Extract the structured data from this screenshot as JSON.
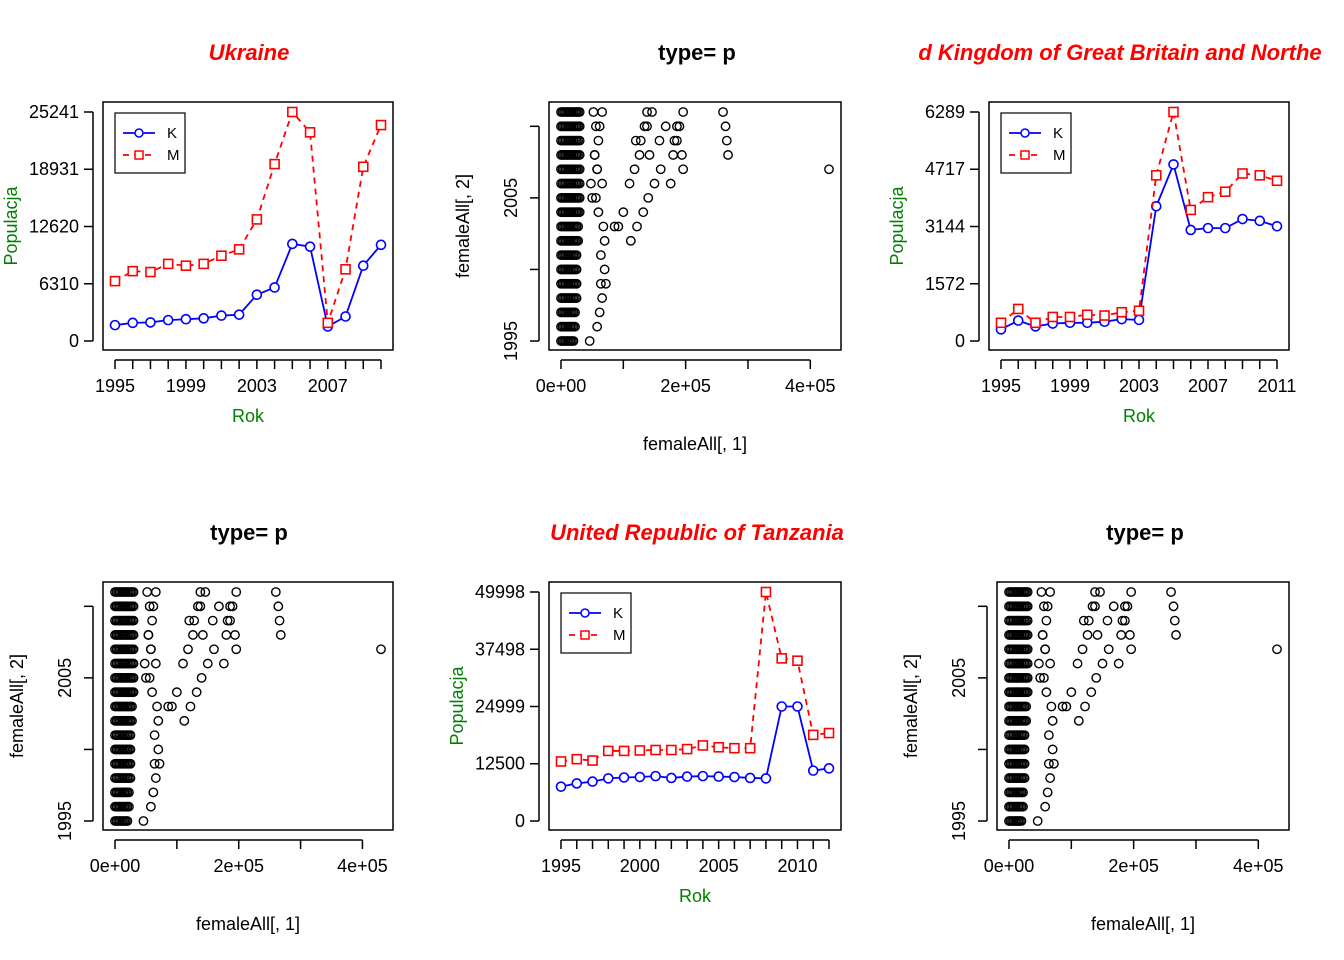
{
  "chart_data": [
    {
      "type": "line",
      "title": "Ukraine",
      "title_color": "#ff0000",
      "xlabel": "Rok",
      "ylabel": "Populacja",
      "label_color": "#008000",
      "xlim": [
        1995,
        2010
      ],
      "ylim": [
        0,
        25241
      ],
      "x_ticks": [
        1995,
        1999,
        2003,
        2007
      ],
      "y_ticks": [
        0,
        6310,
        12620,
        18931,
        25241
      ],
      "x_minor_step": 1,
      "legend": "top-left",
      "x": [
        1995,
        1996,
        1997,
        1998,
        1999,
        2000,
        2001,
        2002,
        2003,
        2004,
        2005,
        2006,
        2007,
        2008,
        2009,
        2010
      ],
      "series": [
        {
          "name": "K",
          "color": "#0000ff",
          "marker": "circle",
          "dash": "solid",
          "values": [
            1750,
            2000,
            2050,
            2300,
            2400,
            2500,
            2800,
            2900,
            5100,
            5900,
            10700,
            10400,
            1600,
            2700,
            8300,
            10600
          ]
        },
        {
          "name": "M",
          "color": "#ff0000",
          "marker": "square",
          "dash": "dashed",
          "values": [
            6600,
            7700,
            7600,
            8500,
            8300,
            8500,
            9400,
            10100,
            13400,
            19500,
            25241,
            23000,
            2000,
            7900,
            19200,
            23800
          ]
        }
      ]
    },
    {
      "type": "scatter",
      "title": "type= p",
      "title_color": "#000000",
      "xlabel": "femaleAll[, 1]",
      "ylabel": "femaleAll[, 2]",
      "label_color": "#000000",
      "ylim_years": [
        1995,
        2011
      ],
      "y_ticks": [
        1995,
        2005
      ],
      "x_ticks": [
        "0e+00",
        "2e+05",
        "4e+05"
      ],
      "x_ticks_values": [
        0,
        200000,
        400000
      ]
    },
    {
      "type": "line",
      "title": "d Kingdom of Great Britain and Northe",
      "title_color": "#ff0000",
      "xlabel": "Rok",
      "ylabel": "Populacja",
      "label_color": "#008000",
      "xlim": [
        1995,
        2011
      ],
      "ylim": [
        0,
        6289
      ],
      "x_ticks": [
        1995,
        1999,
        2003,
        2007,
        2011
      ],
      "y_ticks": [
        0,
        1572,
        3144,
        4717,
        6289
      ],
      "x_minor_step": 1,
      "legend": "top-left",
      "x": [
        1995,
        1996,
        1997,
        1998,
        1999,
        2000,
        2001,
        2002,
        2003,
        2004,
        2005,
        2006,
        2007,
        2008,
        2009,
        2010,
        2011
      ],
      "series": [
        {
          "name": "K",
          "color": "#0000ff",
          "marker": "circle",
          "dash": "solid",
          "values": [
            320,
            560,
            400,
            480,
            500,
            500,
            530,
            600,
            580,
            3700,
            4850,
            3050,
            3100,
            3100,
            3350,
            3300,
            3150
          ]
        },
        {
          "name": "M",
          "color": "#ff0000",
          "marker": "square",
          "dash": "dashed",
          "values": [
            500,
            880,
            500,
            660,
            660,
            720,
            700,
            790,
            830,
            4550,
            6289,
            3600,
            3950,
            4100,
            4600,
            4550,
            4400
          ]
        }
      ]
    },
    {
      "type": "scatter",
      "title": "type= p",
      "title_color": "#000000",
      "xlabel": "femaleAll[, 1]",
      "ylabel": "femaleAll[, 2]",
      "label_color": "#000000",
      "ylim_years": [
        1995,
        2011
      ],
      "y_ticks": [
        1995,
        2005
      ],
      "x_ticks": [
        "0e+00",
        "2e+05",
        "4e+05"
      ],
      "x_ticks_values": [
        0,
        200000,
        400000
      ]
    },
    {
      "type": "line",
      "title": "United Republic of Tanzania",
      "title_color": "#ff0000",
      "xlabel": "Rok",
      "ylabel": "Populacja",
      "label_color": "#008000",
      "xlim": [
        1995,
        2012
      ],
      "ylim": [
        0,
        49998
      ],
      "x_ticks": [
        1995,
        2000,
        2005,
        2010
      ],
      "y_ticks": [
        0,
        12500,
        24999,
        37498,
        49998
      ],
      "x_minor_step": 1,
      "legend": "top-left",
      "x": [
        1995,
        1996,
        1997,
        1998,
        1999,
        2000,
        2001,
        2002,
        2003,
        2004,
        2005,
        2006,
        2007,
        2008,
        2009,
        2010,
        2011,
        2012
      ],
      "series": [
        {
          "name": "K",
          "color": "#0000ff",
          "marker": "circle",
          "dash": "solid",
          "values": [
            7500,
            8200,
            8600,
            9300,
            9500,
            9600,
            9800,
            9400,
            9700,
            9800,
            9700,
            9600,
            9400,
            9300,
            25000,
            25000,
            11000,
            11500
          ]
        },
        {
          "name": "M",
          "color": "#ff0000",
          "marker": "square",
          "dash": "dashed",
          "values": [
            13000,
            13500,
            13200,
            15300,
            15300,
            15400,
            15500,
            15500,
            15700,
            16500,
            16100,
            15900,
            15900,
            49998,
            35500,
            35000,
            18800,
            19200
          ]
        }
      ]
    },
    {
      "type": "scatter",
      "title": "type= p",
      "title_color": "#000000",
      "xlabel": "femaleAll[, 1]",
      "ylabel": "femaleAll[, 2]",
      "label_color": "#000000",
      "ylim_years": [
        1995,
        2011
      ],
      "y_ticks": [
        1995,
        2005
      ],
      "x_ticks": [
        "0e+00",
        "2e+05",
        "4e+05"
      ],
      "x_ticks_values": [
        0,
        200000,
        400000
      ]
    }
  ],
  "scatter_points": {
    "years": [
      1995,
      1996,
      1997,
      1998,
      1999,
      2000,
      2001,
      2002,
      2003,
      2004,
      2005,
      2006,
      2007,
      2008,
      2009,
      2010,
      2011
    ],
    "dense_max": [
      22000,
      23000,
      24000,
      25000,
      26000,
      26000,
      27000,
      28000,
      29000,
      30000,
      30000,
      30000,
      30000,
      30000,
      30000,
      30000,
      30000
    ],
    "dense_step": 2500,
    "extra": [
      [
        46000,
        1995
      ],
      [
        58000,
        1996
      ],
      [
        62000,
        1997
      ],
      [
        66000,
        1998
      ],
      [
        72000,
        1999
      ],
      [
        64000,
        1999
      ],
      [
        70000,
        2000
      ],
      [
        64000,
        2001
      ],
      [
        70000,
        2002
      ],
      [
        68000,
        2003
      ],
      [
        60000,
        2004
      ],
      [
        56000,
        2005
      ],
      [
        66000,
        2006
      ],
      [
        58000,
        2007
      ],
      [
        54000,
        2008
      ],
      [
        60000,
        2009
      ],
      [
        62000,
        2010
      ],
      [
        66000,
        2011
      ],
      [
        86000,
        2003
      ],
      [
        112000,
        2002
      ],
      [
        122000,
        2003
      ],
      [
        132000,
        2004
      ],
      [
        140000,
        2005
      ],
      [
        150000,
        2006
      ],
      [
        160000,
        2007
      ],
      [
        142000,
        2008
      ],
      [
        158000,
        2009
      ],
      [
        168000,
        2010
      ],
      [
        146000,
        2011
      ],
      [
        134000,
        2010
      ],
      [
        120000,
        2009
      ],
      [
        126000,
        2008
      ],
      [
        118000,
        2007
      ],
      [
        110000,
        2006
      ],
      [
        100000,
        2004
      ],
      [
        92000,
        2003
      ],
      [
        138000,
        2011
      ],
      [
        138000,
        2010
      ],
      [
        128000,
        2009
      ],
      [
        182000,
        2009
      ],
      [
        186000,
        2009
      ],
      [
        190000,
        2010
      ],
      [
        196000,
        2011
      ],
      [
        194000,
        2008
      ],
      [
        180000,
        2008
      ],
      [
        186000,
        2010
      ],
      [
        196000,
        2007
      ],
      [
        176000,
        2006
      ],
      [
        260000,
        2011
      ],
      [
        264000,
        2010
      ],
      [
        266000,
        2009
      ],
      [
        268000,
        2008
      ],
      [
        430000,
        2007
      ],
      [
        52000,
        2011
      ],
      [
        56000,
        2010
      ],
      [
        54000,
        2008
      ],
      [
        58000,
        2007
      ],
      [
        48000,
        2006
      ],
      [
        50000,
        2005
      ]
    ]
  }
}
